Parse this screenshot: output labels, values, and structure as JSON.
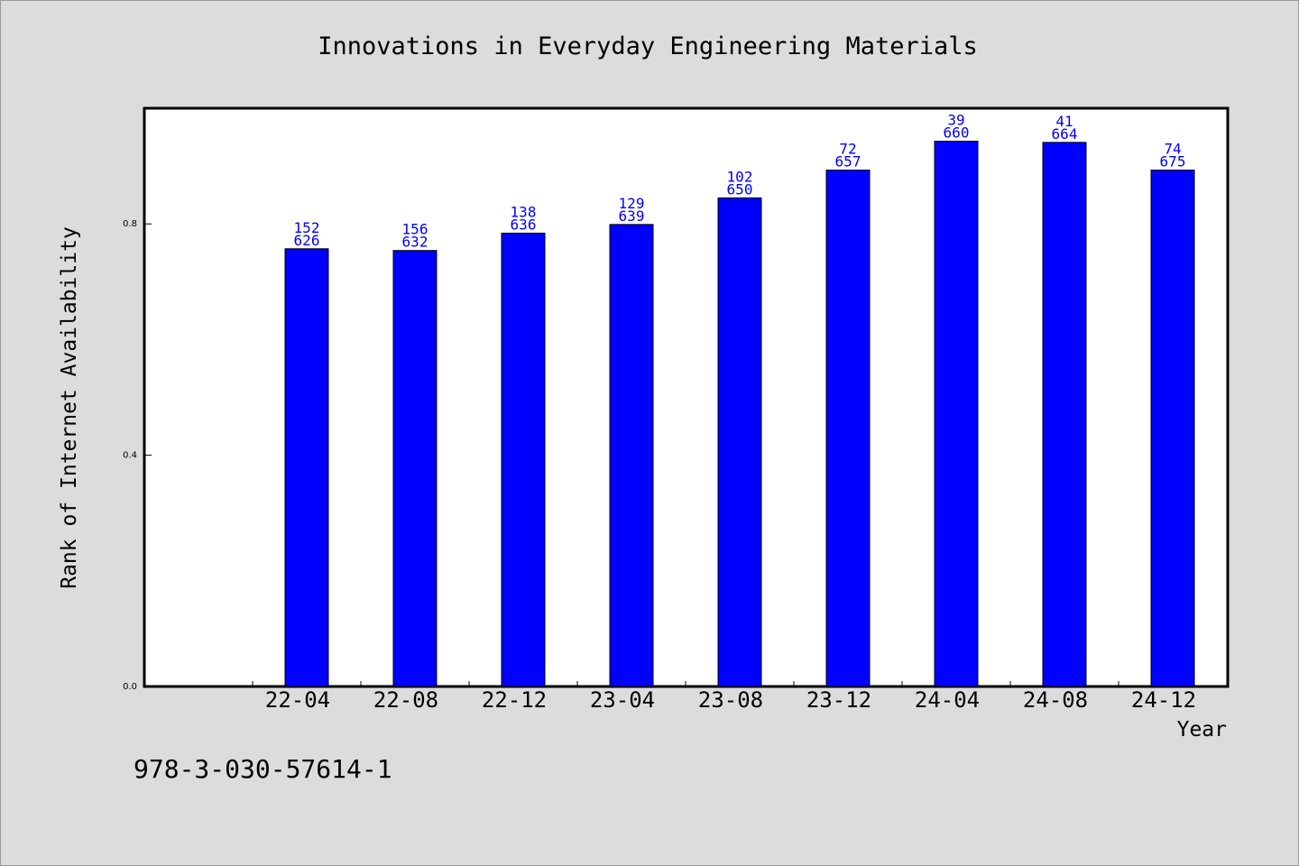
{
  "chart_data": {
    "type": "bar",
    "title": "Innovations in Everyday Engineering Materials",
    "xlabel": "Year",
    "ylabel": "Rank of Internet Availability",
    "categories": [
      "22-04",
      "22-08",
      "22-12",
      "23-04",
      "23-08",
      "23-12",
      "24-04",
      "24-08",
      "24-12"
    ],
    "values": [
      0.757,
      0.754,
      0.784,
      0.799,
      0.845,
      0.893,
      0.943,
      0.941,
      0.893
    ],
    "bar_labels": [
      [
        "152",
        "626"
      ],
      [
        "156",
        "632"
      ],
      [
        "138",
        "636"
      ],
      [
        "129",
        "639"
      ],
      [
        "102",
        "650"
      ],
      [
        "72",
        "657"
      ],
      [
        "39",
        "660"
      ],
      [
        "41",
        "664"
      ],
      [
        "74",
        "675"
      ]
    ],
    "yticks": [
      0.0,
      0.4,
      0.8
    ],
    "ytick_labels": [
      "0.0",
      "0.4",
      "0.8"
    ],
    "ylim": [
      0,
      1.0
    ],
    "grid": false,
    "bar_color": "#0000ff",
    "background": "#dcdcdc",
    "plot_background": "#ffffff",
    "label_color": "#0000ff"
  },
  "footer_text": "978-3-030-57614-1"
}
